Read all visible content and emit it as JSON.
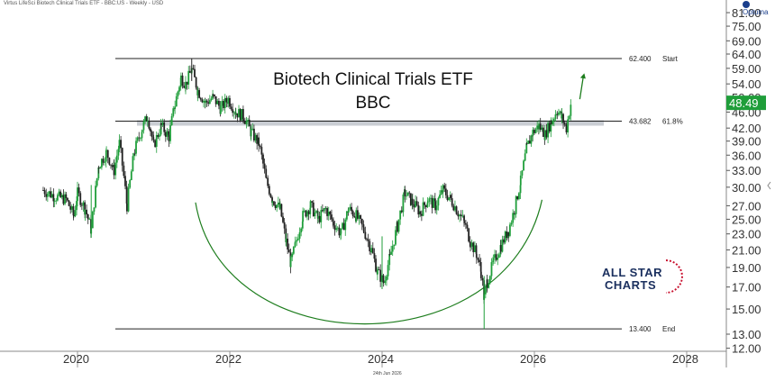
{
  "header": "Virtus LifeSci Biotech Clinical Trials ETF - BBC:US - Weekly - USD",
  "footer": "24th Jun 2026",
  "brand": "Optuma",
  "logo": {
    "line1": "ALL STAR",
    "line2": "CHARTS"
  },
  "chart_data": {
    "type": "candlestick",
    "title": "Biotech Clinical Trials ETF",
    "subtitle": "BBC",
    "y_ticks": [
      81,
      75,
      69,
      64,
      59,
      54,
      50,
      46,
      42,
      39,
      36,
      33,
      30,
      27,
      25,
      23,
      21,
      19,
      17,
      15,
      13,
      12
    ],
    "y_tick_labels": [
      "81.00",
      "75.00",
      "69.00",
      "64.00",
      "59.00",
      "54.00",
      "50.00",
      "46.00",
      "42.00",
      "39.00",
      "36.00",
      "33.00",
      "30.00",
      "27.00",
      "25.00",
      "23.00",
      "21.00",
      "19.00",
      "17.00",
      "15.00",
      "13.00",
      "12.00"
    ],
    "y_scale": "log",
    "ylim": [
      12,
      83
    ],
    "x_ticks": [
      "2020",
      "2022",
      "2024",
      "2026",
      "2028"
    ],
    "xlim": [
      "2019-06",
      "2028-09"
    ],
    "last_price": "48.49",
    "levels": [
      {
        "value": 62.4,
        "label": "62.400",
        "tag": "Start"
      },
      {
        "value": 43.682,
        "label": "43.682",
        "tag": "61.8%"
      },
      {
        "value": 13.4,
        "label": "13.400",
        "tag": "End"
      }
    ],
    "price_path": [
      {
        "t": 2019.55,
        "v": 29.5
      },
      {
        "t": 2019.7,
        "v": 28.5
      },
      {
        "t": 2019.85,
        "v": 28.0
      },
      {
        "t": 2019.95,
        "v": 25.5
      },
      {
        "t": 2020.0,
        "v": 29.0
      },
      {
        "t": 2020.1,
        "v": 26.5
      },
      {
        "t": 2020.18,
        "v": 23.5
      },
      {
        "t": 2020.28,
        "v": 34.0
      },
      {
        "t": 2020.38,
        "v": 36.5
      },
      {
        "t": 2020.48,
        "v": 33.0
      },
      {
        "t": 2020.55,
        "v": 38.5
      },
      {
        "t": 2020.65,
        "v": 27.0
      },
      {
        "t": 2020.75,
        "v": 37.0
      },
      {
        "t": 2020.85,
        "v": 42.0
      },
      {
        "t": 2020.92,
        "v": 45.0
      },
      {
        "t": 2021.0,
        "v": 38.0
      },
      {
        "t": 2021.1,
        "v": 42.5
      },
      {
        "t": 2021.2,
        "v": 40.0
      },
      {
        "t": 2021.28,
        "v": 48.0
      },
      {
        "t": 2021.36,
        "v": 56.0
      },
      {
        "t": 2021.42,
        "v": 54.0
      },
      {
        "t": 2021.5,
        "v": 58.5
      },
      {
        "t": 2021.58,
        "v": 52.0
      },
      {
        "t": 2021.68,
        "v": 48.5
      },
      {
        "t": 2021.78,
        "v": 50.0
      },
      {
        "t": 2021.88,
        "v": 47.0
      },
      {
        "t": 2021.98,
        "v": 49.5
      },
      {
        "t": 2022.08,
        "v": 46.0
      },
      {
        "t": 2022.18,
        "v": 45.0
      },
      {
        "t": 2022.28,
        "v": 41.0
      },
      {
        "t": 2022.38,
        "v": 38.5
      },
      {
        "t": 2022.48,
        "v": 31.0
      },
      {
        "t": 2022.56,
        "v": 28.0
      },
      {
        "t": 2022.66,
        "v": 26.5
      },
      {
        "t": 2022.74,
        "v": 22.0
      },
      {
        "t": 2022.8,
        "v": 19.5
      },
      {
        "t": 2022.86,
        "v": 21.5
      },
      {
        "t": 2022.96,
        "v": 25.5
      },
      {
        "t": 2023.06,
        "v": 27.0
      },
      {
        "t": 2023.16,
        "v": 25.0
      },
      {
        "t": 2023.26,
        "v": 26.5
      },
      {
        "t": 2023.36,
        "v": 24.5
      },
      {
        "t": 2023.46,
        "v": 23.0
      },
      {
        "t": 2023.56,
        "v": 26.5
      },
      {
        "t": 2023.66,
        "v": 25.5
      },
      {
        "t": 2023.76,
        "v": 23.5
      },
      {
        "t": 2023.86,
        "v": 21.0
      },
      {
        "t": 2023.94,
        "v": 18.5
      },
      {
        "t": 2024.02,
        "v": 17.5
      },
      {
        "t": 2024.1,
        "v": 20.0
      },
      {
        "t": 2024.2,
        "v": 24.0
      },
      {
        "t": 2024.3,
        "v": 29.0
      },
      {
        "t": 2024.4,
        "v": 27.5
      },
      {
        "t": 2024.5,
        "v": 26.0
      },
      {
        "t": 2024.6,
        "v": 28.0
      },
      {
        "t": 2024.7,
        "v": 27.0
      },
      {
        "t": 2024.8,
        "v": 29.5
      },
      {
        "t": 2024.9,
        "v": 28.0
      },
      {
        "t": 2025.0,
        "v": 26.0
      },
      {
        "t": 2025.08,
        "v": 24.5
      },
      {
        "t": 2025.16,
        "v": 22.0
      },
      {
        "t": 2025.24,
        "v": 20.5
      },
      {
        "t": 2025.3,
        "v": 18.5
      },
      {
        "t": 2025.34,
        "v": 16.0
      },
      {
        "t": 2025.38,
        "v": 17.5
      },
      {
        "t": 2025.46,
        "v": 19.5
      },
      {
        "t": 2025.56,
        "v": 21.5
      },
      {
        "t": 2025.66,
        "v": 23.5
      },
      {
        "t": 2025.74,
        "v": 26.5
      },
      {
        "t": 2025.82,
        "v": 31.0
      },
      {
        "t": 2025.9,
        "v": 37.5
      },
      {
        "t": 2025.98,
        "v": 41.0
      },
      {
        "t": 2026.06,
        "v": 42.5
      },
      {
        "t": 2026.14,
        "v": 40.5
      },
      {
        "t": 2026.22,
        "v": 43.5
      },
      {
        "t": 2026.3,
        "v": 46.5
      },
      {
        "t": 2026.36,
        "v": 44.5
      },
      {
        "t": 2026.42,
        "v": 42.0
      },
      {
        "t": 2026.48,
        "v": 48.49
      }
    ],
    "price_spikes": [
      {
        "t": 2025.34,
        "low": 13.4
      },
      {
        "t": 2024.0,
        "low": 16.8
      },
      {
        "t": 2021.5,
        "high": 62.4
      },
      {
        "t": 2020.18,
        "low": 22.5
      }
    ]
  }
}
